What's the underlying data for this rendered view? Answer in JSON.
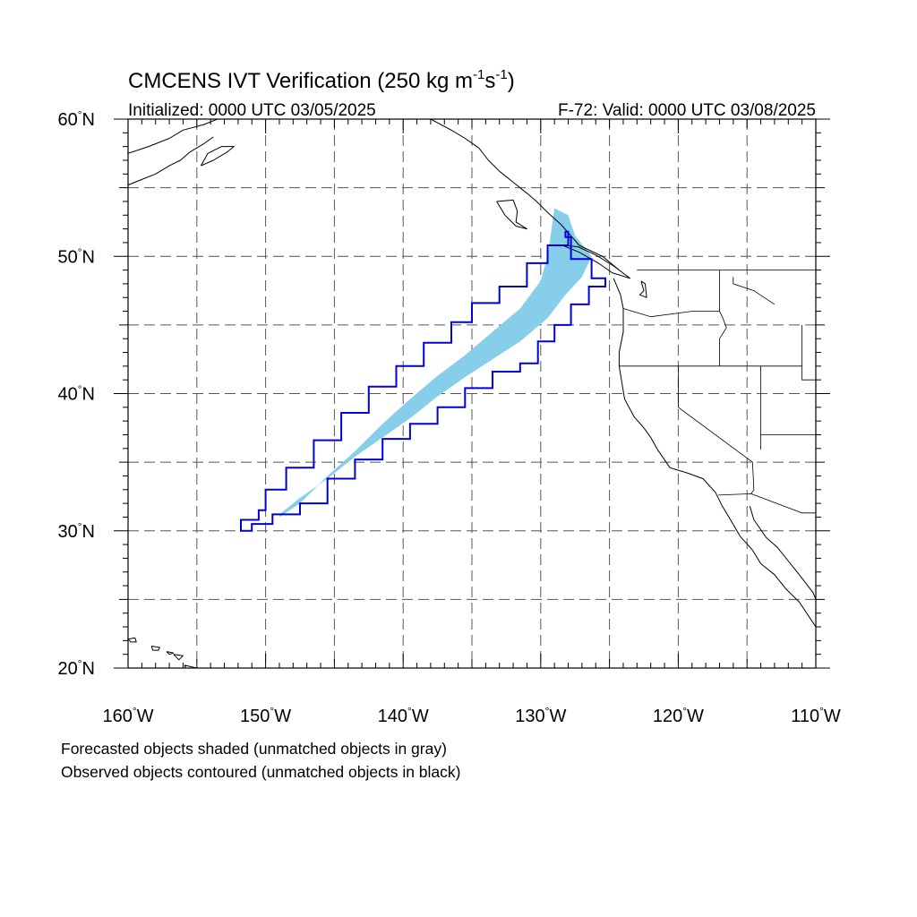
{
  "title": {
    "prefix": "CMCENS IVT Verification (250 kg m",
    "exp1": "-1",
    "mid": "s",
    "exp2": "-1",
    "suffix": ")"
  },
  "subtitle_left": "Initialized: 0000 UTC 03/05/2025",
  "subtitle_right": "F-72: Valid: 0000 UTC 03/08/2025",
  "footer_lines": [
    "Forecasted objects shaded (unmatched objects in gray)",
    "Observed objects contoured (unmatched objects in black)"
  ],
  "axes": {
    "lon_range": [
      -160,
      -110
    ],
    "lat_range": [
      20,
      60
    ],
    "x_labels": [
      {
        "lon": -160,
        "label": "160°W"
      },
      {
        "lon": -150,
        "label": "150°W"
      },
      {
        "lon": -140,
        "label": "140°W"
      },
      {
        "lon": -130,
        "label": "130°W"
      },
      {
        "lon": -120,
        "label": "120°W"
      },
      {
        "lon": -110,
        "label": "110°W"
      }
    ],
    "y_labels": [
      {
        "lat": 60,
        "label": "60°N"
      },
      {
        "lat": 50,
        "label": "50°N"
      },
      {
        "lat": 40,
        "label": "40°N"
      },
      {
        "lat": 30,
        "label": "30°N"
      },
      {
        "lat": 20,
        "label": "20°N"
      }
    ],
    "grid_lon": [
      -155,
      -150,
      -145,
      -140,
      -135,
      -130,
      -125,
      -120,
      -115
    ],
    "grid_lat": [
      25,
      30,
      35,
      40,
      45,
      50,
      55
    ]
  },
  "colors": {
    "forecast_fill": "#87ceeb",
    "observed_contour": "#0000dd",
    "coast": "#000000",
    "grid": "#555555"
  },
  "forecast_object": [
    [
      -149.0,
      31.0
    ],
    [
      -147.5,
      32.0
    ],
    [
      -145.5,
      34.0
    ],
    [
      -143.5,
      35.8
    ],
    [
      -141.5,
      37.8
    ],
    [
      -139.5,
      39.6
    ],
    [
      -137.5,
      41.3
    ],
    [
      -135.5,
      42.8
    ],
    [
      -133.5,
      44.5
    ],
    [
      -131.5,
      46.2
    ],
    [
      -130.0,
      48.2
    ],
    [
      -129.5,
      50.0
    ],
    [
      -129.0,
      53.5
    ],
    [
      -128.0,
      53.0
    ],
    [
      -127.5,
      51.5
    ],
    [
      -126.3,
      50.0
    ],
    [
      -127.0,
      48.5
    ],
    [
      -128.2,
      47.2
    ],
    [
      -129.5,
      45.5
    ],
    [
      -131.5,
      43.8
    ],
    [
      -133.5,
      42.5
    ],
    [
      -135.5,
      41.2
    ],
    [
      -137.5,
      39.8
    ],
    [
      -139.5,
      38.2
    ],
    [
      -141.5,
      36.8
    ],
    [
      -143.5,
      35.4
    ],
    [
      -145.5,
      33.8
    ],
    [
      -147.5,
      32.4
    ],
    [
      -149.0,
      31.2
    ]
  ],
  "observed_object": [
    [
      -151.8,
      30.0
    ],
    [
      -151.0,
      30.5
    ],
    [
      -149.5,
      31.2
    ],
    [
      -147.5,
      32.0
    ],
    [
      -145.5,
      33.8
    ],
    [
      -143.5,
      35.2
    ],
    [
      -141.5,
      36.7
    ],
    [
      -139.5,
      37.8
    ],
    [
      -137.5,
      39.0
    ],
    [
      -135.5,
      40.4
    ],
    [
      -133.5,
      41.6
    ],
    [
      -131.5,
      42.2
    ],
    [
      -130.2,
      43.8
    ],
    [
      -129.0,
      45.0
    ],
    [
      -127.8,
      46.5
    ],
    [
      -126.5,
      47.8
    ],
    [
      -125.3,
      48.4
    ],
    [
      -126.3,
      49.8
    ],
    [
      -127.8,
      51.4
    ],
    [
      -128.2,
      51.8
    ],
    [
      -128.0,
      50.8
    ],
    [
      -129.5,
      49.5
    ],
    [
      -131.0,
      47.8
    ],
    [
      -133.0,
      46.6
    ],
    [
      -135.0,
      45.2
    ],
    [
      -136.5,
      43.7
    ],
    [
      -138.5,
      42.0
    ],
    [
      -140.5,
      40.5
    ],
    [
      -142.5,
      38.6
    ],
    [
      -144.5,
      36.6
    ],
    [
      -146.5,
      34.6
    ],
    [
      -148.5,
      33.0
    ],
    [
      -150.0,
      31.5
    ],
    [
      -150.5,
      30.8
    ],
    [
      -151.8,
      30.0
    ]
  ],
  "coastlines": [
    [
      [
        -160.0,
        57.5
      ],
      [
        -158.5,
        58.0
      ],
      [
        -157.0,
        58.6
      ],
      [
        -156.0,
        59.2
      ],
      [
        -154.5,
        59.6
      ],
      [
        -153.5,
        60.0
      ]
    ],
    [
      [
        -160.0,
        55.2
      ],
      [
        -159.0,
        55.6
      ],
      [
        -158.0,
        56.0
      ],
      [
        -157.0,
        56.6
      ],
      [
        -156.2,
        57.0
      ],
      [
        -155.5,
        57.6
      ],
      [
        -154.5,
        58.2
      ],
      [
        -153.8,
        58.7
      ]
    ],
    [
      [
        -154.7,
        56.6
      ],
      [
        -153.8,
        57.0
      ],
      [
        -152.8,
        57.6
      ],
      [
        -152.3,
        58.0
      ],
      [
        -153.2,
        58.0
      ],
      [
        -154.2,
        57.5
      ],
      [
        -154.7,
        56.6
      ]
    ],
    [
      [
        -138.0,
        60.0
      ],
      [
        -136.5,
        59.2
      ],
      [
        -135.5,
        58.6
      ],
      [
        -134.5,
        57.9
      ],
      [
        -133.8,
        57.0
      ],
      [
        -133.0,
        56.2
      ],
      [
        -132.0,
        55.4
      ],
      [
        -131.0,
        54.6
      ],
      [
        -130.3,
        54.0
      ],
      [
        -129.5,
        53.2
      ],
      [
        -128.5,
        52.3
      ],
      [
        -127.8,
        51.5
      ],
      [
        -127.2,
        50.8
      ],
      [
        -125.5,
        50.0
      ],
      [
        -124.3,
        49.0
      ]
    ],
    [
      [
        -133.2,
        54.0
      ],
      [
        -132.0,
        54.1
      ],
      [
        -131.7,
        53.3
      ],
      [
        -131.8,
        52.5
      ],
      [
        -131.0,
        52.0
      ],
      [
        -131.8,
        52.2
      ],
      [
        -132.6,
        53.0
      ],
      [
        -133.2,
        54.0
      ]
    ],
    [
      [
        -128.4,
        50.8
      ],
      [
        -127.2,
        50.3
      ],
      [
        -125.8,
        49.5
      ],
      [
        -124.8,
        48.8
      ],
      [
        -123.5,
        48.4
      ],
      [
        -124.7,
        49.3
      ],
      [
        -126.0,
        50.1
      ],
      [
        -127.3,
        50.7
      ],
      [
        -128.4,
        50.8
      ]
    ],
    [
      [
        -124.7,
        48.4
      ],
      [
        -124.2,
        47.2
      ],
      [
        -124.0,
        46.2
      ],
      [
        -124.0,
        44.5
      ],
      [
        -124.3,
        43.0
      ],
      [
        -124.3,
        42.0
      ],
      [
        -124.1,
        40.8
      ],
      [
        -123.9,
        39.6
      ],
      [
        -123.2,
        38.3
      ],
      [
        -122.5,
        37.5
      ],
      [
        -122.0,
        36.8
      ],
      [
        -121.5,
        35.9
      ],
      [
        -120.6,
        34.6
      ],
      [
        -119.3,
        34.2
      ],
      [
        -118.2,
        33.8
      ],
      [
        -117.3,
        32.8
      ],
      [
        -116.8,
        31.8
      ],
      [
        -116.2,
        30.8
      ],
      [
        -115.5,
        29.6
      ],
      [
        -114.6,
        28.6
      ],
      [
        -114.0,
        27.6
      ],
      [
        -113.0,
        26.8
      ],
      [
        -112.2,
        25.8
      ],
      [
        -111.2,
        24.8
      ],
      [
        -110.4,
        23.6
      ],
      [
        -110.0,
        23.0
      ]
    ],
    [
      [
        -114.8,
        31.8
      ],
      [
        -114.5,
        30.8
      ],
      [
        -113.6,
        29.5
      ],
      [
        -112.8,
        28.8
      ],
      [
        -112.0,
        27.8
      ],
      [
        -111.2,
        26.8
      ],
      [
        -110.2,
        25.5
      ],
      [
        -110.0,
        25.0
      ]
    ],
    [
      [
        -122.7,
        48.2
      ],
      [
        -122.5,
        47.5
      ],
      [
        -122.8,
        47.2
      ],
      [
        -122.3,
        47.0
      ],
      [
        -122.4,
        48.0
      ],
      [
        -122.7,
        48.2
      ]
    ],
    [
      [
        -160.0,
        22.1
      ],
      [
        -159.5,
        22.2
      ],
      [
        -159.4,
        21.9
      ],
      [
        -159.8,
        21.9
      ],
      [
        -160.0,
        22.1
      ]
    ],
    [
      [
        -158.3,
        21.6
      ],
      [
        -157.7,
        21.5
      ],
      [
        -157.8,
        21.3
      ],
      [
        -158.2,
        21.3
      ],
      [
        -158.3,
        21.6
      ]
    ],
    [
      [
        -157.2,
        21.2
      ],
      [
        -156.7,
        21.1
      ],
      [
        -157.0,
        21.0
      ],
      [
        -157.2,
        21.2
      ]
    ],
    [
      [
        -156.7,
        21.0
      ],
      [
        -156.0,
        20.9
      ],
      [
        -156.3,
        20.6
      ],
      [
        -156.7,
        21.0
      ]
    ],
    [
      [
        -155.9,
        20.2
      ],
      [
        -155.0,
        20.0
      ],
      [
        -154.9,
        19.6
      ],
      [
        -155.6,
        19.6
      ],
      [
        -155.9,
        20.2
      ]
    ]
  ],
  "borders": [
    [
      [
        -123.0,
        49.0
      ],
      [
        -110.0,
        49.0
      ]
    ],
    [
      [
        -117.0,
        49.0
      ],
      [
        -117.0,
        46.0
      ],
      [
        -116.8,
        45.6
      ],
      [
        -116.5,
        44.8
      ],
      [
        -117.0,
        44.0
      ],
      [
        -117.0,
        42.0
      ]
    ],
    [
      [
        -124.0,
        46.2
      ],
      [
        -122.0,
        45.6
      ],
      [
        -119.0,
        46.0
      ],
      [
        -117.0,
        46.0
      ]
    ],
    [
      [
        -124.3,
        42.0
      ],
      [
        -117.0,
        42.0
      ],
      [
        -111.0,
        42.0
      ]
    ],
    [
      [
        -120.0,
        42.0
      ],
      [
        -120.0,
        39.0
      ],
      [
        -114.6,
        35.0
      ],
      [
        -114.5,
        33.0
      ],
      [
        -114.7,
        32.7
      ]
    ],
    [
      [
        -114.0,
        42.0
      ],
      [
        -114.0,
        37.0
      ],
      [
        -114.0,
        35.9
      ]
    ],
    [
      [
        -114.0,
        37.0
      ],
      [
        -110.0,
        37.0
      ]
    ],
    [
      [
        -111.0,
        45.0
      ],
      [
        -111.0,
        41.0
      ],
      [
        -110.0,
        41.0
      ]
    ],
    [
      [
        -117.1,
        32.6
      ],
      [
        -114.7,
        32.7
      ],
      [
        -111.0,
        31.3
      ],
      [
        -110.0,
        31.3
      ]
    ],
    [
      [
        -116.0,
        48.5
      ],
      [
        -116.0,
        48.0
      ],
      [
        -114.5,
        47.5
      ],
      [
        -113.0,
        46.5
      ]
    ]
  ]
}
